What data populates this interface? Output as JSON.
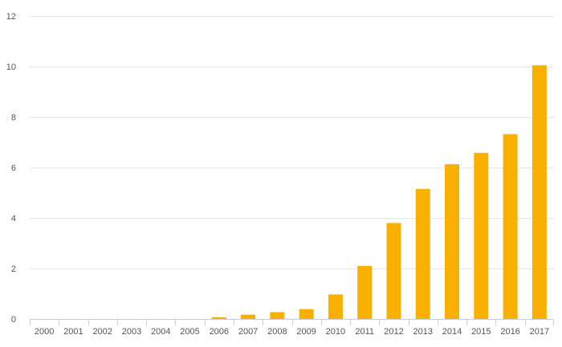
{
  "chart_data": {
    "type": "bar",
    "title": "",
    "xlabel": "",
    "ylabel": "",
    "categories": [
      "2000",
      "2001",
      "2002",
      "2003",
      "2004",
      "2005",
      "2006",
      "2007",
      "2008",
      "2009",
      "2010",
      "2011",
      "2012",
      "2013",
      "2014",
      "2015",
      "2016",
      "2017"
    ],
    "values": [
      0,
      0,
      0,
      0,
      0,
      0,
      0.07,
      0.17,
      0.27,
      0.39,
      0.97,
      2.1,
      3.8,
      5.15,
      6.13,
      6.58,
      7.32,
      10.05
    ],
    "ylim": [
      0,
      12
    ],
    "yticks": [
      0,
      2,
      4,
      6,
      8,
      10,
      12
    ],
    "grid": true,
    "bar_color": "#f9b000",
    "grid_color": "#e6e6e6",
    "axis_color": "#c8cde0",
    "label_color": "#555555"
  }
}
